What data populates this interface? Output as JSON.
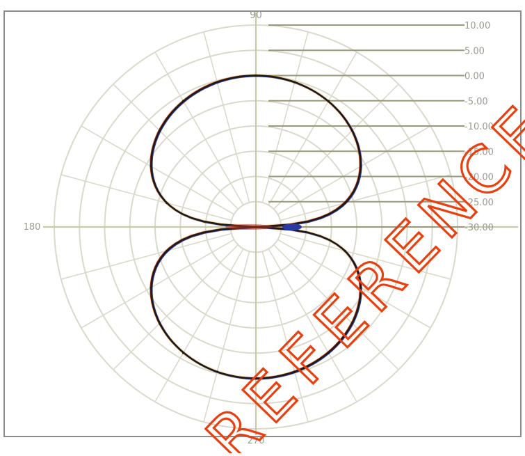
{
  "chart_data": {
    "type": "polar",
    "angle_labels": {
      "top": "90",
      "left": "180",
      "bottom": "270"
    },
    "radial_ticks": [
      "10.00",
      "5.00",
      "0.00",
      "-5.00",
      "-10.00",
      "-15.00",
      "-20.00",
      "-25.00",
      "-30.00"
    ],
    "radial_tick_values": [
      10,
      5,
      0,
      -5,
      -10,
      -15,
      -20,
      -25,
      -30
    ],
    "radial_range": [
      -30,
      10
    ],
    "angular_grid_step_deg": 15,
    "grid": true,
    "pattern": "figure-eight (dipole) lobes along the 90°–270° axis",
    "series": [
      {
        "color": "#1a1a1a",
        "theta_deg": [
          0,
          15,
          30,
          45,
          60,
          75,
          90,
          105,
          120,
          135,
          150,
          165,
          180,
          195,
          210,
          225,
          240,
          255,
          270,
          285,
          300,
          315,
          330,
          345
        ],
        "r_db": [
          -30,
          -11.7,
          -6,
          -3,
          -1.2,
          -0.3,
          0,
          -0.3,
          -1.2,
          -3,
          -6,
          -11.7,
          -30,
          -11.7,
          -6,
          -3,
          -1.2,
          -0.3,
          0,
          -0.3,
          -1.2,
          -3,
          -6,
          -11.7
        ]
      }
    ],
    "watermark": "REFERENCE"
  },
  "colors": {
    "frame_border": "#8c8c8c",
    "grid": "#d9d9cc",
    "axis": "#c9c9a8",
    "tick_line": "#9a9a78",
    "trace": "#1a1a1a",
    "trace_accent_blue": "#2a3aa0",
    "trace_accent_red": "#b03020",
    "trace_accent_orange": "#f0b030",
    "watermark": "#e8410f",
    "label": "#9a9a90"
  }
}
